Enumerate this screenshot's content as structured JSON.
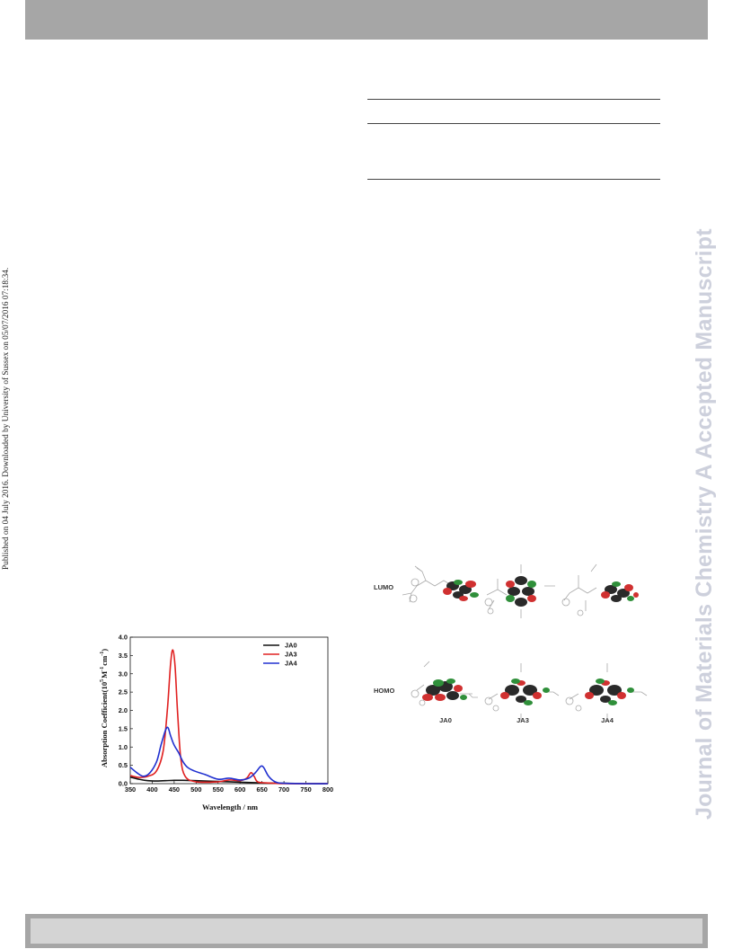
{
  "side_note": "Published on 04 July 2016. Downloaded by University of Sussex on 05/07/2016 07:18:34.",
  "journal_watermark": "Journal of Materials Chemistry A Accepted Manuscript",
  "figure_orbitals": {
    "row_labels": [
      "LUMO",
      "HOMO"
    ],
    "column_labels": [
      "JA0",
      "JA3",
      "JA4"
    ]
  },
  "chart_data": {
    "type": "line",
    "xlabel": "Wavelength / nm",
    "ylabel": "Absorption Coefficient(10^5 M^-1 cm^-1)",
    "ylabel_parts": {
      "prefix": "Absorption Coefficient(",
      "base": "10",
      "base_sup": "5",
      "unit_m": "M",
      "unit_m_sup": "-1",
      "unit_cm": "cm",
      "unit_cm_sup": "-1",
      "suffix": ")"
    },
    "xlim": [
      350,
      800
    ],
    "ylim": [
      0,
      4.0
    ],
    "x_ticks": [
      "350",
      "400",
      "450",
      "500",
      "550",
      "600",
      "650",
      "700",
      "750",
      "800"
    ],
    "y_ticks": [
      "0.0",
      "0.5",
      "1.0",
      "1.5",
      "2.0",
      "2.5",
      "3.0",
      "3.5",
      "4.0"
    ],
    "legend_position": "top-right",
    "series": [
      {
        "name": "JA0",
        "color": "#111111",
        "x": [
          350,
          370,
          390,
          410,
          430,
          450,
          470,
          500,
          550,
          600,
          650,
          700,
          750,
          800
        ],
        "y": [
          0.18,
          0.12,
          0.08,
          0.07,
          0.08,
          0.09,
          0.09,
          0.08,
          0.06,
          0.04,
          0.02,
          0.01,
          0.0,
          0.0
        ]
      },
      {
        "name": "JA3",
        "color": "#e02020",
        "x": [
          350,
          370,
          390,
          410,
          425,
          435,
          442,
          447,
          452,
          458,
          465,
          475,
          500,
          550,
          575,
          600,
          615,
          625,
          632,
          640,
          660,
          700,
          750,
          800
        ],
        "y": [
          0.22,
          0.17,
          0.2,
          0.35,
          0.9,
          2.1,
          3.3,
          3.65,
          3.2,
          1.9,
          0.7,
          0.2,
          0.05,
          0.05,
          0.1,
          0.08,
          0.15,
          0.3,
          0.2,
          0.05,
          0.02,
          0.0,
          0.0,
          0.0
        ]
      },
      {
        "name": "JA4",
        "color": "#2030d0",
        "x": [
          350,
          365,
          380,
          395,
          410,
          420,
          430,
          436,
          442,
          450,
          460,
          470,
          480,
          495,
          520,
          550,
          575,
          600,
          620,
          635,
          645,
          650,
          655,
          665,
          680,
          700,
          750,
          800
        ],
        "y": [
          0.45,
          0.3,
          0.2,
          0.3,
          0.6,
          1.05,
          1.45,
          1.53,
          1.3,
          1.05,
          0.85,
          0.6,
          0.45,
          0.35,
          0.25,
          0.12,
          0.15,
          0.1,
          0.15,
          0.3,
          0.45,
          0.48,
          0.42,
          0.2,
          0.05,
          0.01,
          0.0,
          0.0
        ]
      }
    ]
  }
}
